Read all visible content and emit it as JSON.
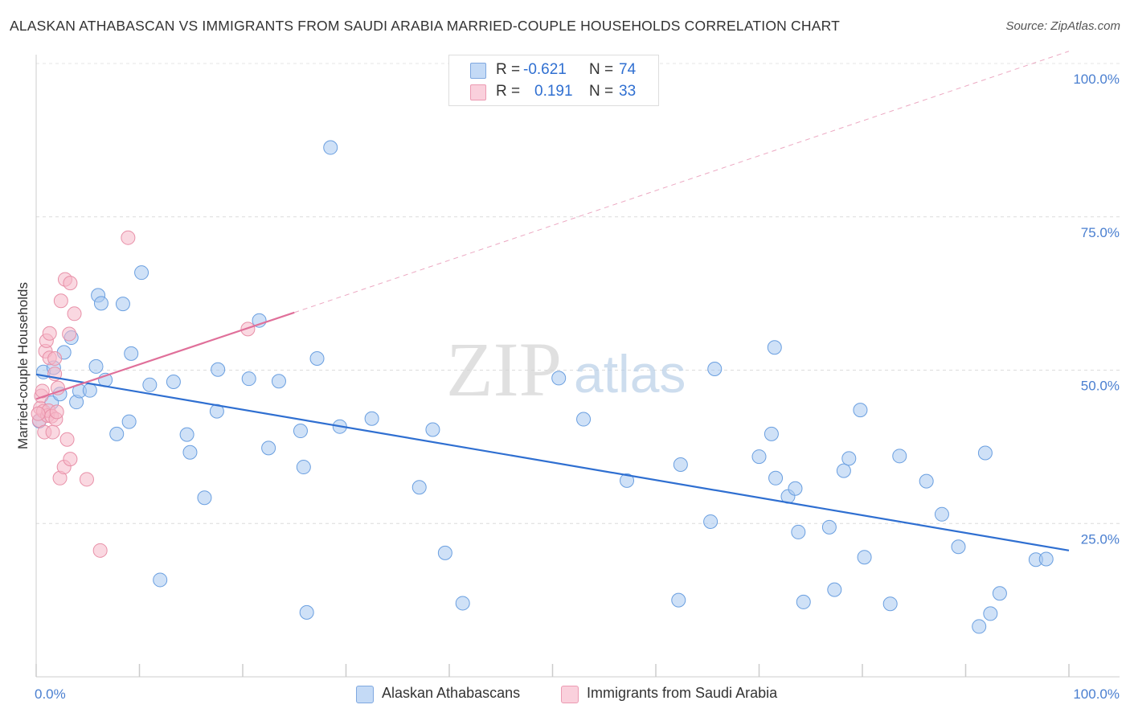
{
  "header": {
    "title": "ALASKAN ATHABASCAN VS IMMIGRANTS FROM SAUDI ARABIA MARRIED-COUPLE HOUSEHOLDS CORRELATION CHART",
    "source": "Source: ZipAtlas.com"
  },
  "legend": {
    "rows": [
      {
        "r_label": "R =",
        "r_value": "-0.621",
        "n_label": "N =",
        "n_value": "74",
        "color": "#a8c8f0"
      },
      {
        "r_label": "R =",
        "r_value": "0.191",
        "n_label": "N =",
        "n_value": "33",
        "color": "#f5b8c8"
      }
    ]
  },
  "bottom_legend": [
    {
      "label": "Alaskan Athabascans",
      "color": "#a8c8f0"
    },
    {
      "label": "Immigrants from Saudi Arabia",
      "color": "#f5b8c8"
    }
  ],
  "watermark": {
    "zip": "ZIP",
    "atlas": "atlas"
  },
  "chart_data": {
    "type": "scatter",
    "title": "ALASKAN ATHABASCAN VS IMMIGRANTS FROM SAUDI ARABIA MARRIED-COUPLE HOUSEHOLDS CORRELATION CHART",
    "ylabel": "Married-couple Households",
    "xlabel": "",
    "xlim": [
      0,
      100
    ],
    "ylim": [
      0,
      100
    ],
    "x_tick_labels": [
      "0.0%",
      "100.0%"
    ],
    "y_tick_labels": [
      "100.0%",
      "75.0%",
      "50.0%",
      "25.0%"
    ],
    "y_ticks": [
      100,
      75,
      50,
      25
    ],
    "grid": true,
    "legend_position": "top-center",
    "series": [
      {
        "name": "Alaskan Athabascans",
        "color": "#a8c8f0",
        "edge_color": "#6a9fe0",
        "trend_color": "#2f6fd1",
        "trend": {
          "x0": 0,
          "y0": 49.3,
          "x1": 100,
          "y1": 20.6
        },
        "points": [
          [
            0.3,
            41.7
          ],
          [
            0.7,
            49.7
          ],
          [
            1.5,
            44.7
          ],
          [
            1.7,
            50.4
          ],
          [
            2.3,
            46.1
          ],
          [
            2.7,
            52.9
          ],
          [
            3.4,
            55.3
          ],
          [
            3.9,
            44.8
          ],
          [
            4.2,
            46.6
          ],
          [
            5.2,
            46.7
          ],
          [
            5.8,
            50.6
          ],
          [
            6.0,
            62.2
          ],
          [
            6.3,
            60.9
          ],
          [
            6.7,
            48.4
          ],
          [
            7.8,
            39.6
          ],
          [
            8.4,
            60.8
          ],
          [
            9.0,
            41.6
          ],
          [
            9.2,
            52.7
          ],
          [
            10.2,
            65.9
          ],
          [
            11.0,
            47.6
          ],
          [
            12.0,
            15.8
          ],
          [
            13.3,
            48.1
          ],
          [
            14.6,
            39.5
          ],
          [
            14.9,
            36.6
          ],
          [
            16.3,
            29.2
          ],
          [
            17.5,
            43.3
          ],
          [
            17.6,
            50.1
          ],
          [
            20.6,
            48.6
          ],
          [
            21.6,
            58.1
          ],
          [
            22.5,
            37.3
          ],
          [
            23.5,
            48.2
          ],
          [
            25.6,
            40.1
          ],
          [
            25.9,
            34.2
          ],
          [
            26.2,
            10.5
          ],
          [
            27.2,
            51.9
          ],
          [
            28.5,
            86.3
          ],
          [
            29.4,
            40.8
          ],
          [
            32.5,
            42.1
          ],
          [
            37.1,
            30.9
          ],
          [
            38.4,
            40.3
          ],
          [
            39.6,
            20.2
          ],
          [
            41.3,
            12.0
          ],
          [
            50.6,
            48.7
          ],
          [
            53.0,
            42.0
          ],
          [
            57.2,
            32.0
          ],
          [
            62.2,
            12.5
          ],
          [
            62.4,
            34.6
          ],
          [
            65.3,
            25.3
          ],
          [
            65.7,
            50.2
          ],
          [
            70.0,
            35.9
          ],
          [
            71.2,
            39.6
          ],
          [
            71.5,
            53.7
          ],
          [
            71.6,
            32.4
          ],
          [
            72.8,
            29.4
          ],
          [
            73.5,
            30.7
          ],
          [
            73.8,
            23.6
          ],
          [
            76.8,
            24.4
          ],
          [
            77.3,
            14.2
          ],
          [
            78.2,
            33.6
          ],
          [
            78.7,
            35.6
          ],
          [
            79.8,
            43.5
          ],
          [
            80.2,
            19.5
          ],
          [
            82.7,
            11.9
          ],
          [
            83.6,
            36.0
          ],
          [
            86.2,
            31.9
          ],
          [
            87.7,
            26.5
          ],
          [
            89.3,
            21.2
          ],
          [
            91.9,
            36.5
          ],
          [
            92.4,
            10.3
          ],
          [
            93.3,
            13.6
          ],
          [
            96.8,
            19.1
          ],
          [
            97.8,
            19.2
          ],
          [
            91.3,
            8.2
          ],
          [
            74.3,
            12.2
          ]
        ]
      },
      {
        "name": "Immigrants from Saudi Arabia",
        "color": "#f5b8c8",
        "edge_color": "#e890a8",
        "trend_color": "#e0709a",
        "trend": {
          "x0": 0,
          "y0": 45.3,
          "x1": 25,
          "y1": 59.4
        },
        "trend_extension": {
          "x0": 25,
          "y0": 59.4,
          "x1": 100,
          "y1": 102.0
        },
        "points": [
          [
            0.3,
            41.8
          ],
          [
            0.4,
            43.8
          ],
          [
            0.5,
            45.8
          ],
          [
            0.6,
            46.6
          ],
          [
            0.7,
            43.3
          ],
          [
            0.8,
            39.9
          ],
          [
            0.9,
            53.1
          ],
          [
            1.0,
            54.8
          ],
          [
            1.1,
            42.6
          ],
          [
            1.2,
            43.4
          ],
          [
            1.3,
            52.0
          ],
          [
            1.3,
            56.0
          ],
          [
            1.5,
            42.5
          ],
          [
            1.6,
            39.9
          ],
          [
            1.8,
            51.9
          ],
          [
            1.8,
            49.4
          ],
          [
            1.9,
            42.0
          ],
          [
            2.0,
            43.2
          ],
          [
            2.1,
            47.1
          ],
          [
            2.3,
            32.4
          ],
          [
            2.4,
            61.3
          ],
          [
            2.7,
            34.2
          ],
          [
            2.8,
            64.8
          ],
          [
            3.0,
            38.7
          ],
          [
            3.2,
            55.9
          ],
          [
            3.3,
            35.5
          ],
          [
            3.3,
            64.2
          ],
          [
            3.7,
            59.2
          ],
          [
            4.9,
            32.2
          ],
          [
            6.2,
            20.6
          ],
          [
            8.9,
            71.6
          ],
          [
            20.5,
            56.7
          ],
          [
            0.2,
            42.9
          ]
        ]
      }
    ]
  }
}
